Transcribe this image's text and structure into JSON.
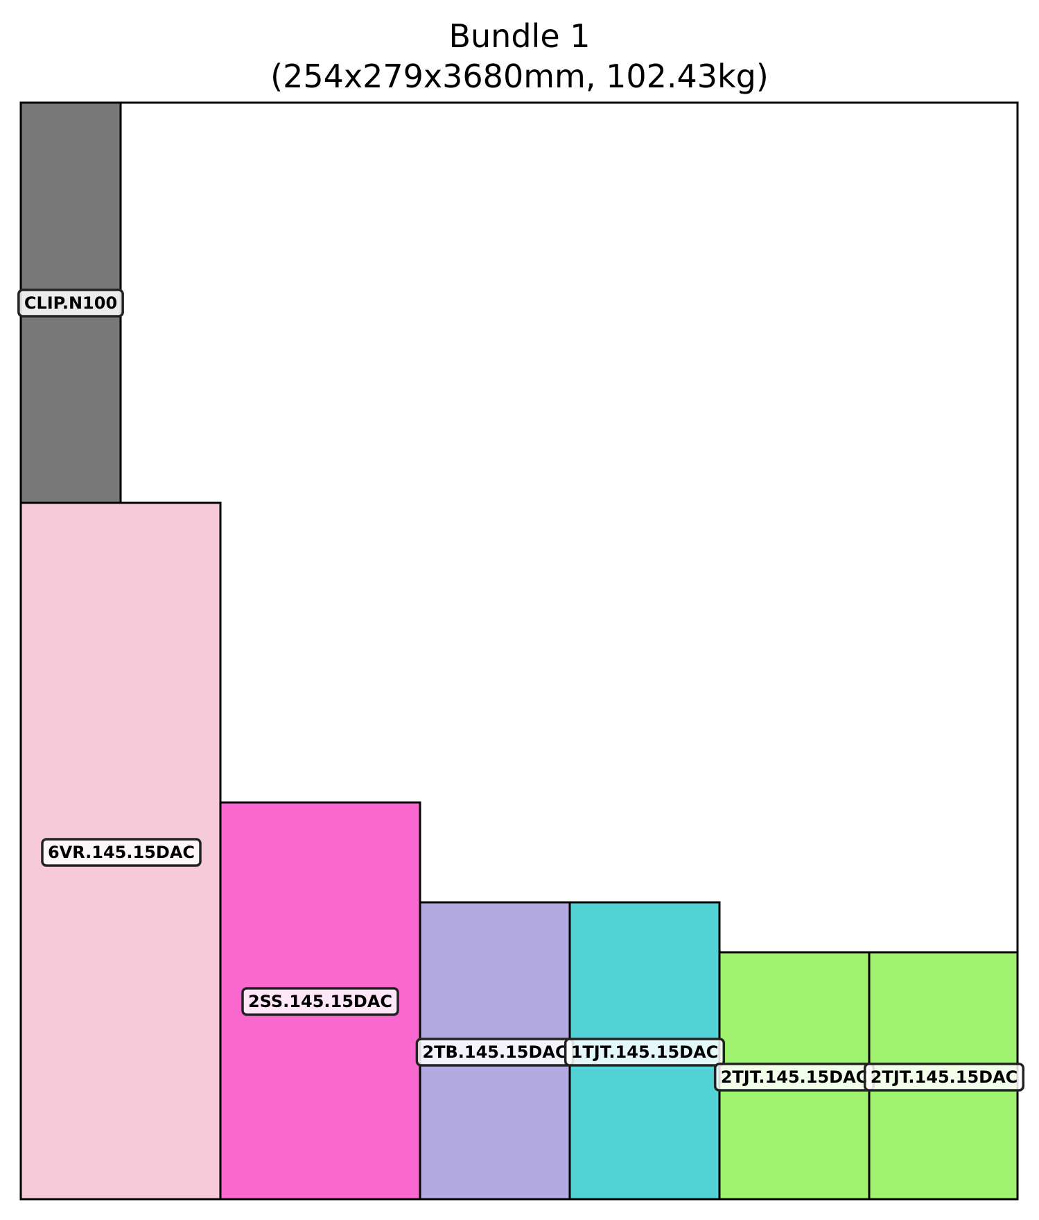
{
  "title": "Bundle 1",
  "subtitle": "(254x279x3680mm, 102.43kg)",
  "colors": {
    "frame": "#000000",
    "label_border": "#222222"
  },
  "items": [
    {
      "label": "CLIP.N100",
      "color": "#787878"
    },
    {
      "label": "6VR.145.15DAC",
      "color": "#f6cad9"
    },
    {
      "label": "2SS.145.15DAC",
      "color": "#f868cf"
    },
    {
      "label": "2TB.145.15DAC",
      "color": "#b3aae1"
    },
    {
      "label": "1TJT.145.15DAC",
      "color": "#53d2d6"
    },
    {
      "label": "2TJT.145.15DAC",
      "color": "#a0f36e"
    },
    {
      "label": "2TJT.145.15DAC",
      "color": "#a0f36e"
    }
  ]
}
